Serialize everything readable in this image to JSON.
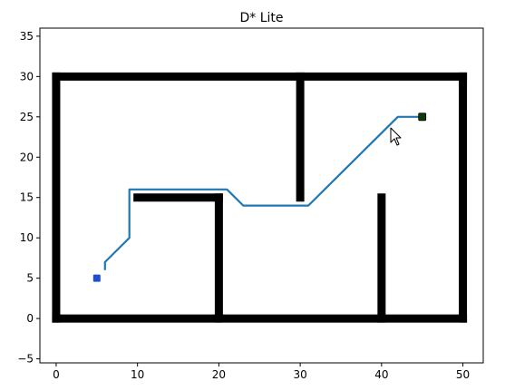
{
  "chart_data": {
    "type": "scatter",
    "title": "D* Lite",
    "xlabel": "",
    "ylabel": "",
    "xlim": [
      -2,
      52.5
    ],
    "ylim": [
      -5.5,
      36
    ],
    "x_ticks": [
      0,
      10,
      20,
      30,
      40,
      50
    ],
    "y_ticks": [
      -5,
      0,
      5,
      10,
      15,
      20,
      25,
      30,
      35
    ],
    "grid": false,
    "obstacles": {
      "color": "#000000",
      "segments": [
        {
          "name": "bottom-wall",
          "from": [
            0,
            0
          ],
          "to": [
            50,
            0
          ]
        },
        {
          "name": "top-wall",
          "from": [
            0,
            30
          ],
          "to": [
            50,
            30
          ]
        },
        {
          "name": "left-wall",
          "from": [
            0,
            0
          ],
          "to": [
            0,
            30
          ]
        },
        {
          "name": "right-wall",
          "from": [
            50,
            0
          ],
          "to": [
            50,
            30
          ]
        },
        {
          "name": "inner-wall-x20",
          "from": [
            20,
            0
          ],
          "to": [
            20,
            15
          ]
        },
        {
          "name": "inner-ledge-y15",
          "from": [
            10,
            15
          ],
          "to": [
            20,
            15
          ]
        },
        {
          "name": "inner-wall-x30",
          "from": [
            30,
            15
          ],
          "to": [
            30,
            30
          ]
        },
        {
          "name": "inner-wall-x40",
          "from": [
            40,
            0
          ],
          "to": [
            40,
            15
          ]
        }
      ]
    },
    "path": {
      "color": "#1f77b4",
      "points": [
        [
          6,
          6
        ],
        [
          6,
          7
        ],
        [
          9,
          10
        ],
        [
          9,
          16
        ],
        [
          21,
          16
        ],
        [
          23,
          14
        ],
        [
          31,
          14
        ],
        [
          42,
          25
        ],
        [
          45,
          25
        ]
      ]
    },
    "start": {
      "x": 5,
      "y": 5,
      "color": "#1f4fd1"
    },
    "goal": {
      "x": 45,
      "y": 25,
      "color": "#0b3d0b"
    }
  }
}
